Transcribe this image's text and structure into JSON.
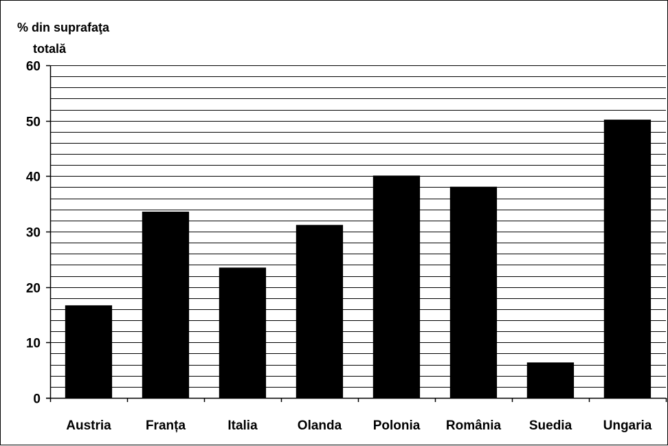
{
  "chart_data": {
    "type": "bar",
    "ylabel_lines": [
      "% din suprafaţa",
      "totală"
    ],
    "xlabel": "",
    "categories": [
      "Austria",
      "Franța",
      "Italia",
      "Olanda",
      "Polonia",
      "România",
      "Suedia",
      "Ungaria"
    ],
    "values": [
      16.7,
      33.6,
      23.5,
      31.2,
      40.1,
      38.1,
      6.4,
      50.2
    ],
    "ylim": [
      0,
      60
    ],
    "y_ticks": [
      "0",
      "10",
      "20",
      "30",
      "40",
      "50",
      "60"
    ],
    "minor_gridline_step": 2,
    "grid": true,
    "legend": "none",
    "colors": {
      "bar": "#000000",
      "grid": "#000000",
      "background": "#ffffff"
    }
  }
}
